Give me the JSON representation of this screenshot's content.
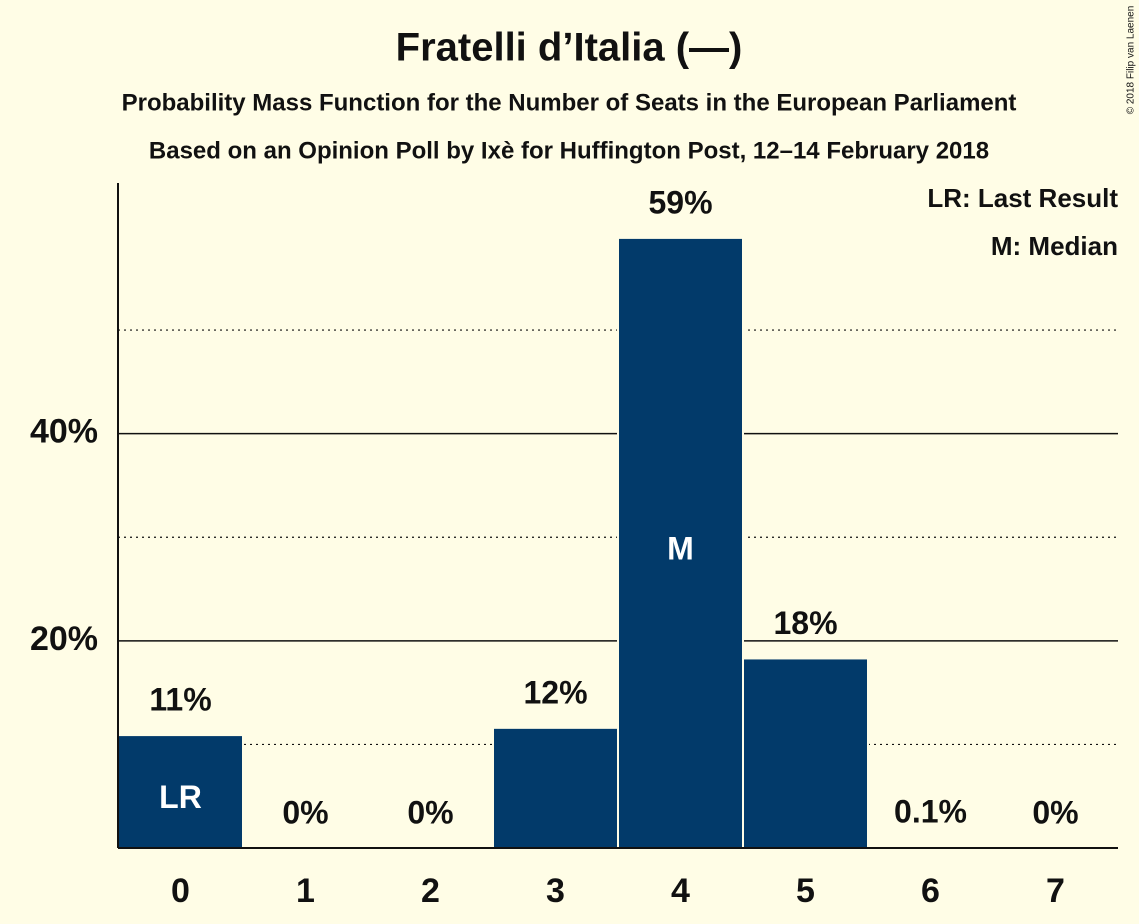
{
  "chart_data": {
    "type": "bar",
    "title": "Fratelli d’Italia (—)",
    "subtitle": "Probability Mass Function for the Number of Seats in the European Parliament",
    "subtitle2": "Based on an Opinion Poll by Ixè for Huffington Post, 12–14 February 2018",
    "copyright": "© 2018 Filip van Laenen",
    "categories": [
      "0",
      "1",
      "2",
      "3",
      "4",
      "5",
      "6",
      "7"
    ],
    "values": [
      10.9,
      0,
      0,
      11.6,
      58.9,
      18.3,
      0.1,
      0
    ],
    "value_labels": [
      "11%",
      "0%",
      "0%",
      "12%",
      "59%",
      "18%",
      "0.1%",
      "0%"
    ],
    "bar_labels": [
      "LR",
      null,
      null,
      null,
      "M",
      null,
      null,
      null
    ],
    "legend": [
      "LR: Last Result",
      "M: Median"
    ],
    "color": "#023a6a",
    "ylim": [
      0,
      64.2
    ],
    "yticks": [
      {
        "value": 20,
        "label": "20%"
      },
      {
        "value": 40,
        "label": "40%"
      }
    ],
    "minor_yticks": [
      10,
      30,
      50
    ],
    "grid": true
  }
}
